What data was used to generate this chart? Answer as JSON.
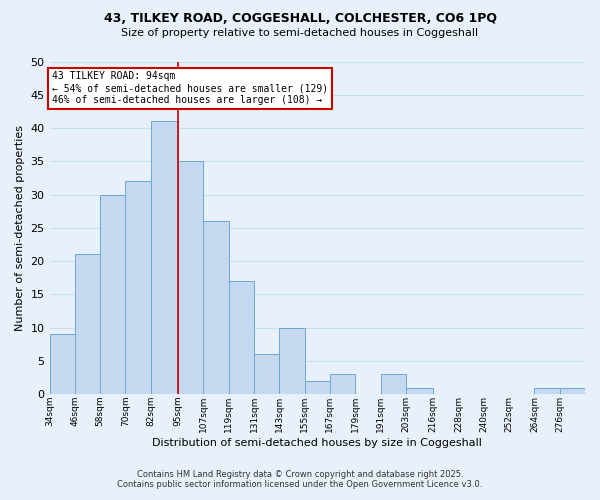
{
  "title_line1": "43, TILKEY ROAD, COGGESHALL, COLCHESTER, CO6 1PQ",
  "title_line2": "Size of property relative to semi-detached houses in Coggeshall",
  "xlabel": "Distribution of semi-detached houses by size in Coggeshall",
  "ylabel": "Number of semi-detached properties",
  "bin_labels": [
    "34sqm",
    "46sqm",
    "58sqm",
    "70sqm",
    "82sqm",
    "95sqm",
    "107sqm",
    "119sqm",
    "131sqm",
    "143sqm",
    "155sqm",
    "167sqm",
    "179sqm",
    "191sqm",
    "203sqm",
    "216sqm",
    "228sqm",
    "240sqm",
    "252sqm",
    "264sqm",
    "276sqm"
  ],
  "bin_edges": [
    34,
    46,
    58,
    70,
    82,
    95,
    107,
    119,
    131,
    143,
    155,
    167,
    179,
    191,
    203,
    216,
    228,
    240,
    252,
    264,
    276,
    288
  ],
  "counts": [
    9,
    21,
    30,
    32,
    41,
    35,
    26,
    17,
    6,
    10,
    2,
    3,
    0,
    3,
    1,
    0,
    0,
    0,
    0,
    1,
    1
  ],
  "bar_color": "#c5d8f0",
  "bar_edge_color": "#6aaad4",
  "grid_color": "#c8dff0",
  "background_color": "#e8f1fb",
  "vline_x": 95,
  "vline_color": "#cc0000",
  "annotation_title": "43 TILKEY ROAD: 94sqm",
  "annotation_line1": "← 54% of semi-detached houses are smaller (129)",
  "annotation_line2": "46% of semi-detached houses are larger (108) →",
  "annotation_box_color": "#ffffff",
  "annotation_box_edge": "#cc0000",
  "footnote1": "Contains HM Land Registry data © Crown copyright and database right 2025.",
  "footnote2": "Contains public sector information licensed under the Open Government Licence v3.0.",
  "ylim": [
    0,
    50
  ],
  "yticks": [
    0,
    5,
    10,
    15,
    20,
    25,
    30,
    35,
    40,
    45,
    50
  ]
}
